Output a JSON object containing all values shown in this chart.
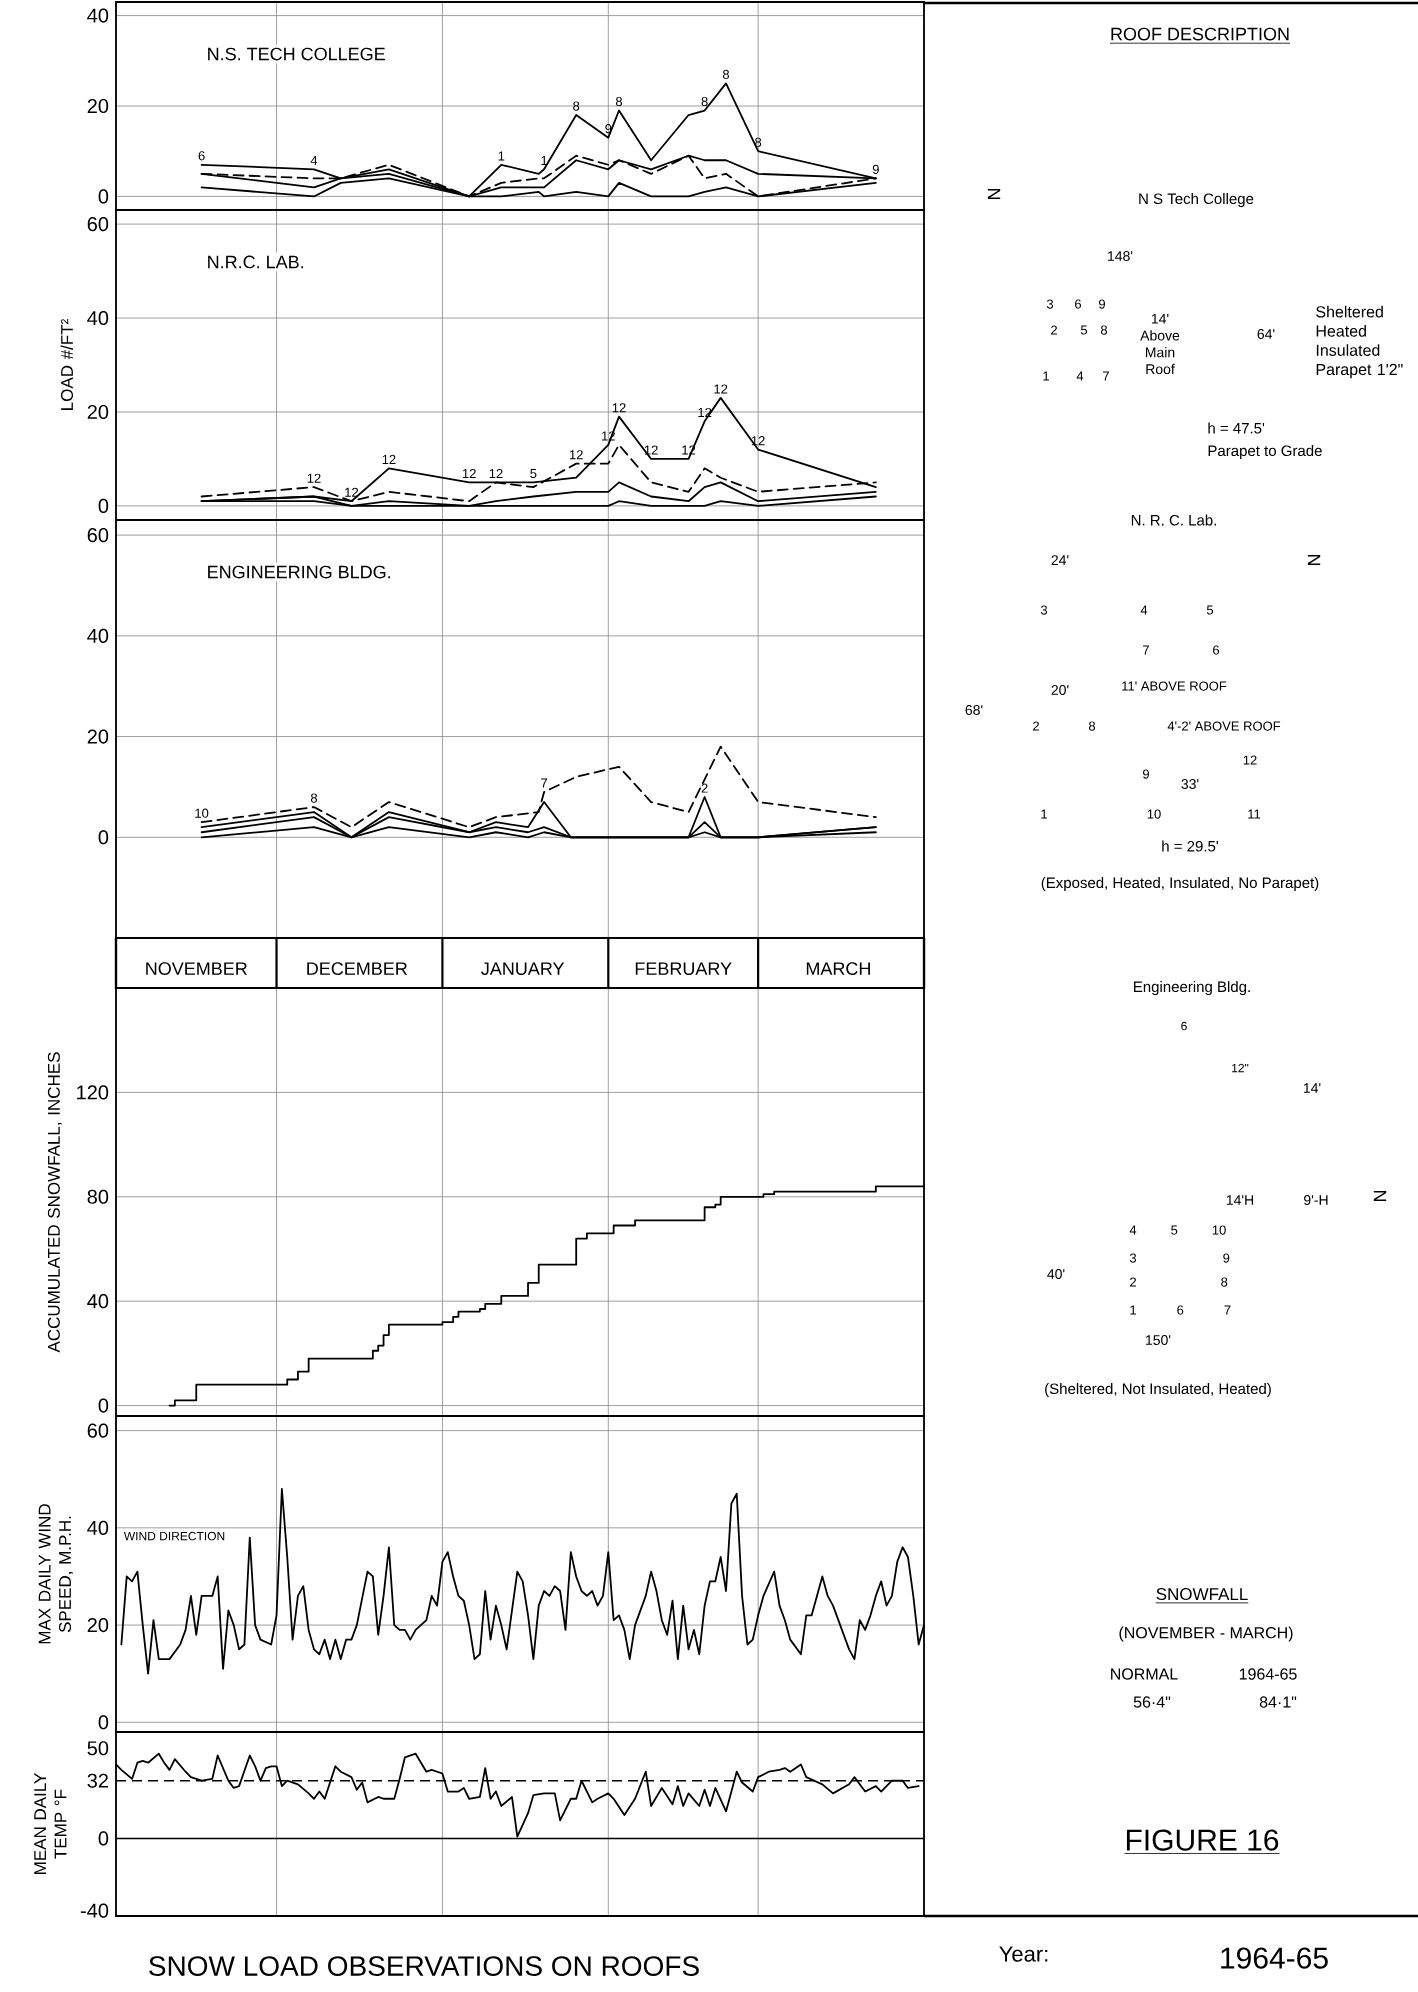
{
  "chart_data": [
    {
      "type": "line",
      "title": "N.S. TECH COLLEGE",
      "xlim": [
        "1964-11-01",
        "1965-04-01"
      ],
      "xticks": [
        {
          "value": "1964-11-01",
          "label": null
        },
        {
          "value": "1964-12-01",
          "label": null
        },
        {
          "value": "1965-01-01",
          "label": null
        },
        {
          "value": "1965-02-01",
          "label": null
        },
        {
          "value": "1965-03-01",
          "label": null
        },
        {
          "value": "1965-04-01",
          "label": null
        }
      ],
      "ylim": [
        -3,
        43
      ],
      "yticks": [
        0,
        20,
        40
      ],
      "grid": true,
      "tick_labels": "y",
      "series": [
        {
          "color": "#000000",
          "x": [
            "1964-11-17",
            "1964-12-08",
            "1964-12-13",
            "1964-12-22",
            "1965-01-06",
            "1965-01-12",
            "1965-01-19",
            "1965-01-20",
            "1965-01-26",
            "1965-02-01",
            "1965-02-03",
            "1965-02-09",
            "1965-02-16",
            "1965-02-19",
            "1965-02-23",
            "1965-03-01",
            "1965-03-23"
          ],
          "values": [
            7,
            6,
            4,
            6,
            0,
            7,
            5,
            6,
            18,
            13,
            19,
            8,
            18,
            19,
            25,
            10,
            4
          ]
        },
        {
          "color": "#000000",
          "line_style": "dashed",
          "x": [
            "1964-11-17",
            "1964-12-08",
            "1964-12-13",
            "1964-12-22",
            "1965-01-06",
            "1965-01-12",
            "1965-01-19",
            "1965-01-20",
            "1965-01-26",
            "1965-02-01",
            "1965-02-03",
            "1965-02-09",
            "1965-02-16",
            "1965-02-19",
            "1965-02-23",
            "1965-03-01",
            "1965-03-23"
          ],
          "values": [
            5,
            4,
            4,
            7,
            0,
            3,
            4,
            4,
            9,
            7,
            8,
            5,
            9,
            4,
            5,
            0,
            4
          ]
        },
        {
          "color": "#000000",
          "x": [
            "1964-11-17",
            "1964-12-08",
            "1964-12-13",
            "1964-12-22",
            "1965-01-06",
            "1965-01-12",
            "1965-01-19",
            "1965-01-20",
            "1965-01-26",
            "1965-02-01",
            "1965-02-03",
            "1965-02-09",
            "1965-02-16",
            "1965-02-19",
            "1965-02-23",
            "1965-03-01",
            "1965-03-23"
          ],
          "values": [
            5,
            2,
            4,
            5,
            0,
            2,
            2,
            2,
            8,
            6,
            8,
            6,
            9,
            8,
            8,
            5,
            4
          ]
        },
        {
          "color": "#000000",
          "x": [
            "1964-11-17",
            "1964-12-08",
            "1964-12-13",
            "1964-12-22",
            "1965-01-06",
            "1965-01-12",
            "1965-01-19",
            "1965-01-20",
            "1965-01-26",
            "1965-02-01",
            "1965-02-03",
            "1965-02-09",
            "1965-02-16",
            "1965-02-19",
            "1965-02-23",
            "1965-03-01",
            "1965-03-23"
          ],
          "values": [
            2,
            0,
            3,
            4,
            0,
            0,
            1,
            0,
            1,
            0,
            3,
            0,
            0,
            1,
            2,
            0,
            3
          ]
        }
      ],
      "annotations": [
        {
          "text": "6",
          "x": "1964-11-17",
          "y": 7
        },
        {
          "text": "4",
          "x": "1964-12-08",
          "y": 6
        },
        {
          "text": "1",
          "x": "1965-01-12",
          "y": 7
        },
        {
          "text": "1",
          "x": "1965-01-20",
          "y": 6
        },
        {
          "text": "8",
          "x": "1965-01-26",
          "y": 18
        },
        {
          "text": "9",
          "x": "1965-02-01",
          "y": 13
        },
        {
          "text": "8",
          "x": "1965-02-03",
          "y": 19
        },
        {
          "text": "8",
          "x": "1965-02-19",
          "y": 19
        },
        {
          "text": "8",
          "x": "1965-02-23",
          "y": 25
        },
        {
          "text": "8",
          "x": "1965-03-01",
          "y": 10
        },
        {
          "text": "9",
          "x": "1965-03-23",
          "y": 4
        }
      ]
    },
    {
      "type": "line",
      "title": "N.R.C. LAB.",
      "ylabel": "LOAD #/FT²",
      "xlim": [
        "1964-11-01",
        "1965-04-01"
      ],
      "xticks": [
        {
          "value": "1964-11-01",
          "label": null
        },
        {
          "value": "1964-12-01",
          "label": null
        },
        {
          "value": "1965-01-01",
          "label": null
        },
        {
          "value": "1965-02-01",
          "label": null
        },
        {
          "value": "1965-03-01",
          "label": null
        },
        {
          "value": "1965-04-01",
          "label": null
        }
      ],
      "ylim": [
        -3,
        63
      ],
      "yticks": [
        0,
        20,
        40,
        60
      ],
      "grid": true,
      "tick_labels": "y",
      "series": [
        {
          "color": "#000000",
          "x": [
            "1964-11-17",
            "1964-12-08",
            "1964-12-15",
            "1964-12-22",
            "1965-01-06",
            "1965-01-11",
            "1965-01-18",
            "1965-01-26",
            "1965-02-01",
            "1965-02-03",
            "1965-02-09",
            "1965-02-16",
            "1965-02-19",
            "1965-02-22",
            "1965-03-01",
            "1965-03-23"
          ],
          "values": [
            1,
            2,
            1,
            8,
            5,
            5,
            5,
            6,
            13,
            19,
            10,
            10,
            18,
            23,
            12,
            4
          ]
        },
        {
          "color": "#000000",
          "line_style": "dashed",
          "x": [
            "1964-11-17",
            "1964-12-08",
            "1964-12-15",
            "1964-12-22",
            "1965-01-06",
            "1965-01-11",
            "1965-01-18",
            "1965-01-26",
            "1965-02-01",
            "1965-02-03",
            "1965-02-09",
            "1965-02-16",
            "1965-02-19",
            "1965-02-22",
            "1965-03-01",
            "1965-03-23"
          ],
          "values": [
            2,
            4,
            1,
            3,
            1,
            5,
            4,
            9,
            9,
            13,
            5,
            3,
            8,
            6,
            3,
            5
          ]
        },
        {
          "color": "#000000",
          "x": [
            "1964-11-17",
            "1964-12-08",
            "1964-12-15",
            "1964-12-22",
            "1965-01-06",
            "1965-01-11",
            "1965-01-18",
            "1965-01-26",
            "1965-02-01",
            "1965-02-03",
            "1965-02-09",
            "1965-02-16",
            "1965-02-19",
            "1965-02-22",
            "1965-03-01",
            "1965-03-23"
          ],
          "values": [
            1,
            2,
            0,
            1,
            0,
            1,
            2,
            3,
            3,
            5,
            2,
            1,
            4,
            5,
            1,
            3
          ]
        },
        {
          "color": "#000000",
          "x": [
            "1964-11-17",
            "1964-12-08",
            "1964-12-15",
            "1964-12-22",
            "1965-01-06",
            "1965-01-11",
            "1965-01-18",
            "1965-01-26",
            "1965-02-01",
            "1965-02-03",
            "1965-02-09",
            "1965-02-16",
            "1965-02-19",
            "1965-02-22",
            "1965-03-01",
            "1965-03-23"
          ],
          "values": [
            1,
            1,
            0,
            0,
            0,
            0,
            0,
            0,
            0,
            1,
            0,
            0,
            0,
            1,
            0,
            2
          ]
        }
      ],
      "annotations": [
        {
          "text": "12",
          "x": "1964-12-08",
          "y": 4
        },
        {
          "text": "12",
          "x": "1964-12-15",
          "y": 1
        },
        {
          "text": "12",
          "x": "1964-12-22",
          "y": 8
        },
        {
          "text": "12",
          "x": "1965-01-06",
          "y": 5
        },
        {
          "text": "12",
          "x": "1965-01-11",
          "y": 5
        },
        {
          "text": "5",
          "x": "1965-01-18",
          "y": 5
        },
        {
          "text": "12",
          "x": "1965-01-26",
          "y": 9
        },
        {
          "text": "12",
          "x": "1965-02-01",
          "y": 13
        },
        {
          "text": "12",
          "x": "1965-02-03",
          "y": 19
        },
        {
          "text": "12",
          "x": "1965-02-09",
          "y": 10
        },
        {
          "text": "12",
          "x": "1965-02-16",
          "y": 10
        },
        {
          "text": "12",
          "x": "1965-02-19",
          "y": 18
        },
        {
          "text": "12",
          "x": "1965-02-22",
          "y": 23
        },
        {
          "text": "12",
          "x": "1965-03-01",
          "y": 12
        }
      ]
    },
    {
      "type": "line",
      "title": "ENGINEERING BLDG.",
      "xlim": [
        "1964-11-01",
        "1965-04-01"
      ],
      "xticks": [
        {
          "value": "1964-11-01",
          "label": null
        },
        {
          "value": "1964-12-01",
          "label": null
        },
        {
          "value": "1965-01-01",
          "label": null
        },
        {
          "value": "1965-02-01",
          "label": null
        },
        {
          "value": "1965-03-01",
          "label": null
        },
        {
          "value": "1965-04-01",
          "label": null
        }
      ],
      "ylim": [
        -20,
        63
      ],
      "yticks": [
        0,
        20,
        40,
        60
      ],
      "grid": true,
      "tick_labels": "y",
      "series": [
        {
          "color": "#000000",
          "line_style": "dashed",
          "x": [
            "1964-11-17",
            "1964-12-08",
            "1964-12-15",
            "1964-12-22",
            "1965-01-06",
            "1965-01-11",
            "1965-01-19",
            "1965-01-20",
            "1965-01-26",
            "1965-02-03",
            "1965-02-09",
            "1965-02-16",
            "1965-02-22",
            "1965-03-01",
            "1965-03-23"
          ],
          "values": [
            3,
            6,
            2,
            7,
            2,
            4,
            5,
            9,
            12,
            14,
            7,
            5,
            18,
            7,
            4
          ]
        },
        {
          "color": "#000000",
          "x": [
            "1964-11-17",
            "1964-12-08",
            "1964-12-15",
            "1964-12-22",
            "1965-01-06",
            "1965-01-11",
            "1965-01-17",
            "1965-01-20",
            "1965-01-25",
            "1965-02-16",
            "1965-02-19",
            "1965-02-22",
            "1965-03-01",
            "1965-03-23"
          ],
          "values": [
            2,
            5,
            0,
            5,
            1,
            3,
            2,
            7,
            0,
            0,
            8,
            0,
            0,
            2
          ]
        },
        {
          "color": "#000000",
          "x": [
            "1964-11-17",
            "1964-12-08",
            "1964-12-15",
            "1964-12-22",
            "1965-01-06",
            "1965-01-11",
            "1965-01-17",
            "1965-01-20",
            "1965-01-25",
            "1965-02-16",
            "1965-02-19",
            "1965-02-22",
            "1965-03-01",
            "1965-03-23"
          ],
          "values": [
            1,
            4,
            0,
            4,
            1,
            2,
            1,
            2,
            0,
            0,
            3,
            0,
            0,
            2
          ]
        },
        {
          "color": "#000000",
          "x": [
            "1964-11-17",
            "1964-12-08",
            "1964-12-15",
            "1964-12-22",
            "1965-01-06",
            "1965-01-11",
            "1965-01-17",
            "1965-01-20",
            "1965-01-25",
            "1965-02-16",
            "1965-02-19",
            "1965-02-22",
            "1965-03-01",
            "1965-03-23"
          ],
          "values": [
            0,
            2,
            0,
            2,
            0,
            1,
            0,
            1,
            0,
            0,
            1,
            0,
            0,
            1
          ]
        }
      ],
      "annotations": [
        {
          "text": "10",
          "x": "1964-11-17",
          "y": 3
        },
        {
          "text": "8",
          "x": "1964-12-08",
          "y": 6
        },
        {
          "text": "7",
          "x": "1965-01-20",
          "y": 9
        },
        {
          "text": "2",
          "x": "1965-02-19",
          "y": 8
        }
      ]
    },
    {
      "type": "step",
      "ylabel": "ACCUMULATED SNOWFALL, INCHES",
      "xlim": [
        "1964-11-01",
        "1965-04-01"
      ],
      "xticks": [
        {
          "value": "1964-11-01",
          "label": null
        },
        {
          "value": "1964-11-16",
          "label": "NOVEMBER"
        },
        {
          "value": "1964-12-01",
          "label": null
        },
        {
          "value": "1964-12-16",
          "label": "DECEMBER"
        },
        {
          "value": "1965-01-01",
          "label": null
        },
        {
          "value": "1965-01-16",
          "label": "JANUARY"
        },
        {
          "value": "1965-02-01",
          "label": null
        },
        {
          "value": "1965-02-15",
          "label": "FEBRUARY"
        },
        {
          "value": "1965-03-01",
          "label": null
        },
        {
          "value": "1965-03-16",
          "label": "MARCH"
        },
        {
          "value": "1965-04-01",
          "label": null
        }
      ],
      "ylim": [
        -4,
        160
      ],
      "yticks": [
        0,
        40,
        80,
        120
      ],
      "grid": true,
      "series": [
        {
          "color": "#000000",
          "x": [
            "1964-11-11",
            "1964-11-12",
            "1964-11-16",
            "1964-12-03",
            "1964-12-05",
            "1964-12-07",
            "1964-12-19",
            "1964-12-20",
            "1964-12-21",
            "1964-12-22",
            "1965-01-01",
            "1965-01-03",
            "1965-01-04",
            "1965-01-08",
            "1965-01-09",
            "1965-01-12",
            "1965-01-17",
            "1965-01-19",
            "1965-01-26",
            "1965-01-28",
            "1965-02-02",
            "1965-02-06",
            "1965-02-19",
            "1965-02-21",
            "1965-02-22",
            "1965-03-02",
            "1965-03-04",
            "1965-03-23",
            "1965-04-01"
          ],
          "values": [
            0,
            2,
            8,
            10,
            13,
            18,
            21,
            23,
            27,
            31,
            32,
            34,
            36,
            37,
            39,
            42,
            47,
            54,
            64,
            66,
            69,
            71,
            76,
            77,
            80,
            81,
            82,
            84,
            84
          ]
        }
      ]
    },
    {
      "type": "line",
      "ylabel": "MAX DAILY WIND SPEED, M.P.H.",
      "xlim": [
        "1964-11-01",
        "1965-04-01"
      ],
      "xticks": [
        {
          "value": "1964-11-01",
          "label": null
        },
        {
          "value": "1964-12-01",
          "label": null
        },
        {
          "value": "1965-01-01",
          "label": null
        },
        {
          "value": "1965-02-01",
          "label": null
        },
        {
          "value": "1965-03-01",
          "label": null
        },
        {
          "value": "1965-04-01",
          "label": null
        }
      ],
      "ylim": [
        -2,
        63
      ],
      "yticks": [
        0,
        20,
        40,
        60
      ],
      "grid": true,
      "tick_labels": "y",
      "annotations": [
        "WIND DIRECTION"
      ],
      "series": [
        {
          "color": "#000000",
          "x": [
            "1964-11-02",
            "1964-11-03",
            "1964-11-04",
            "1964-11-05",
            "1964-11-06",
            "1964-11-07",
            "1964-11-08",
            "1964-11-09",
            "1964-11-11",
            "1964-11-13",
            "1964-11-14",
            "1964-11-15",
            "1964-11-16",
            "1964-11-17",
            "1964-11-19",
            "1964-11-20",
            "1964-11-21",
            "1964-11-22",
            "1964-11-23",
            "1964-11-24",
            "1964-11-25",
            "1964-11-26",
            "1964-11-27",
            "1964-11-28",
            "1964-11-30",
            "1964-12-01",
            "1964-12-02",
            "1964-12-03",
            "1964-12-04",
            "1964-12-05",
            "1964-12-06",
            "1964-12-07",
            "1964-12-08",
            "1964-12-09",
            "1964-12-10",
            "1964-12-11",
            "1964-12-12",
            "1964-12-13",
            "1964-12-14",
            "1964-12-15",
            "1964-12-16",
            "1964-12-18",
            "1964-12-19",
            "1964-12-20",
            "1964-12-21",
            "1964-12-22",
            "1964-12-23",
            "1964-12-24",
            "1964-12-25",
            "1964-12-26",
            "1964-12-27",
            "1964-12-29",
            "1964-12-30",
            "1964-12-31",
            "1965-01-01",
            "1965-01-02",
            "1965-01-03",
            "1965-01-04",
            "1965-01-05",
            "1965-01-06",
            "1965-01-07",
            "1965-01-08",
            "1965-01-09",
            "1965-01-10",
            "1965-01-11",
            "1965-01-12",
            "1965-01-13",
            "1965-01-15",
            "1965-01-16",
            "1965-01-17",
            "1965-01-18",
            "1965-01-19",
            "1965-01-20",
            "1965-01-21",
            "1965-01-22",
            "1965-01-23",
            "1965-01-24",
            "1965-01-25",
            "1965-01-26",
            "1965-01-27",
            "1965-01-28",
            "1965-01-29",
            "1965-01-30",
            "1965-01-31",
            "1965-02-01",
            "1965-02-02",
            "1965-02-03",
            "1965-02-04",
            "1965-02-05",
            "1965-02-06",
            "1965-02-08",
            "1965-02-09",
            "1965-02-10",
            "1965-02-11",
            "1965-02-12",
            "1965-02-13",
            "1965-02-14",
            "1965-02-15",
            "1965-02-16",
            "1965-02-17",
            "1965-02-18",
            "1965-02-19",
            "1965-02-20",
            "1965-02-21",
            "1965-02-22",
            "1965-02-23",
            "1965-02-24",
            "1965-02-25",
            "1965-02-26",
            "1965-02-27",
            "1965-02-28",
            "1965-03-01",
            "1965-03-02",
            "1965-03-04",
            "1965-03-05",
            "1965-03-06",
            "1965-03-07",
            "1965-03-09",
            "1965-03-10",
            "1965-03-11",
            "1965-03-12",
            "1965-03-13",
            "1965-03-14",
            "1965-03-15",
            "1965-03-16",
            "1965-03-17",
            "1965-03-18",
            "1965-03-19",
            "1965-03-20",
            "1965-03-21",
            "1965-03-22",
            "1965-03-23",
            "1965-03-24",
            "1965-03-25",
            "1965-03-26",
            "1965-03-27",
            "1965-03-28",
            "1965-03-29",
            "1965-03-30",
            "1965-03-31",
            "1965-04-01"
          ],
          "values": [
            16,
            30,
            29,
            31,
            20,
            10,
            21,
            13,
            13,
            16,
            19,
            26,
            18,
            26,
            26,
            30,
            11,
            23,
            20,
            15,
            16,
            38,
            20,
            17,
            16,
            22,
            48,
            34,
            17,
            26,
            28,
            19,
            15,
            14,
            17,
            13,
            17,
            13,
            17,
            17,
            20,
            31,
            30,
            18,
            26,
            36,
            20,
            19,
            19,
            17,
            19,
            21,
            26,
            24,
            33,
            35,
            30,
            26,
            25,
            20,
            13,
            14,
            27,
            17,
            24,
            20,
            15,
            31,
            29,
            22,
            13,
            24,
            27,
            26,
            28,
            27,
            19,
            35,
            30,
            27,
            26,
            27,
            24,
            26,
            35,
            21,
            22,
            19,
            13,
            20,
            26,
            31,
            27,
            21,
            18,
            25,
            13,
            24,
            15,
            19,
            14,
            24,
            29,
            29,
            34,
            27,
            45,
            47,
            26,
            16,
            17,
            22,
            26,
            31,
            24,
            21,
            17,
            14,
            22,
            22,
            26,
            30,
            26,
            24,
            21,
            18,
            15,
            13,
            21,
            19,
            22,
            26,
            29,
            24,
            26,
            33,
            36,
            34,
            26,
            16,
            20
          ]
        }
      ]
    },
    {
      "type": "line",
      "ylabel": "MEAN DAILY TEMP °F",
      "xlim": [
        "1964-11-01",
        "1965-04-01"
      ],
      "xticks": [
        {
          "value": "1964-11-01",
          "label": null
        },
        {
          "value": "1964-12-01",
          "label": null
        },
        {
          "value": "1965-01-01",
          "label": null
        },
        {
          "value": "1965-02-01",
          "label": null
        },
        {
          "value": "1965-03-01",
          "label": null
        },
        {
          "value": "1965-04-01",
          "label": null
        }
      ],
      "ylim": [
        -43,
        59
      ],
      "yticks": [
        -40,
        0,
        32,
        50
      ],
      "grid": "x",
      "tick_labels": "y",
      "ref_lines": [
        {
          "axis": "y",
          "value": 0
        },
        {
          "axis": "y",
          "value": 32,
          "line_style": "dashed"
        }
      ],
      "series": [
        {
          "color": "#000000",
          "x": [
            "1964-11-01",
            "1964-11-02",
            "1964-11-04",
            "1964-11-05",
            "1964-11-06",
            "1964-11-07",
            "1964-11-09",
            "1964-11-10",
            "1964-11-11",
            "1964-11-12",
            "1964-11-14",
            "1964-11-15",
            "1964-11-16",
            "1964-11-17",
            "1964-11-19",
            "1964-11-20",
            "1964-11-22",
            "1964-11-23",
            "1964-11-24",
            "1964-11-26",
            "1964-11-27",
            "1964-11-28",
            "1964-11-29",
            "1964-11-30",
            "1964-12-01",
            "1964-12-02",
            "1964-12-03",
            "1964-12-05",
            "1964-12-07",
            "1964-12-08",
            "1964-12-09",
            "1964-12-10",
            "1964-12-12",
            "1964-12-13",
            "1964-12-15",
            "1964-12-16",
            "1964-12-17",
            "1964-12-18",
            "1964-12-20",
            "1964-12-21",
            "1964-12-23",
            "1964-12-24",
            "1964-12-25",
            "1964-12-27",
            "1964-12-28",
            "1964-12-29",
            "1964-12-30",
            "1965-01-01",
            "1965-01-02",
            "1965-01-04",
            "1965-01-05",
            "1965-01-06",
            "1965-01-08",
            "1965-01-09",
            "1965-01-10",
            "1965-01-11",
            "1965-01-12",
            "1965-01-14",
            "1965-01-15",
            "1965-01-17",
            "1965-01-18",
            "1965-01-20",
            "1965-01-22",
            "1965-01-23",
            "1965-01-25",
            "1965-01-26",
            "1965-01-27",
            "1965-01-29",
            "1965-01-30",
            "1965-02-01",
            "1965-02-02",
            "1965-02-04",
            "1965-02-06",
            "1965-02-08",
            "1965-02-09",
            "1965-02-11",
            "1965-02-13",
            "1965-02-14",
            "1965-02-15",
            "1965-02-16",
            "1965-02-18",
            "1965-02-19",
            "1965-02-20",
            "1965-02-21",
            "1965-02-23",
            "1965-02-25",
            "1965-02-26",
            "1965-02-28",
            "1965-03-01",
            "1965-03-03",
            "1965-03-05",
            "1965-03-06",
            "1965-03-07",
            "1965-03-09",
            "1965-03-10",
            "1965-03-13",
            "1965-03-15",
            "1965-03-18",
            "1965-03-19",
            "1965-03-21",
            "1965-03-23",
            "1965-03-24",
            "1965-03-26",
            "1965-03-28",
            "1965-03-29",
            "1965-03-31"
          ],
          "values": [
            41,
            38,
            33,
            42,
            43,
            42,
            47,
            42,
            38,
            44,
            37,
            34,
            33,
            32,
            33,
            46,
            32,
            28,
            29,
            46,
            40,
            32,
            39,
            40,
            40,
            29,
            32,
            30,
            25,
            22,
            26,
            22,
            40,
            37,
            34,
            27,
            31,
            20,
            23,
            22,
            22,
            33,
            45,
            47,
            42,
            37,
            38,
            36,
            26,
            26,
            28,
            22,
            23,
            39,
            22,
            26,
            18,
            23,
            1,
            14,
            24,
            25,
            25,
            10,
            22,
            22,
            32,
            20,
            22,
            25,
            22,
            13,
            22,
            37,
            18,
            28,
            19,
            29,
            18,
            25,
            18,
            27,
            18,
            28,
            15,
            37,
            31,
            26,
            34,
            37,
            38,
            39,
            37,
            41,
            34,
            30,
            25,
            30,
            34,
            26,
            29,
            26,
            32,
            32,
            28,
            29
          ]
        }
      ]
    },
    {
      "type": "other",
      "title": "ROOF DESCRIPTION",
      "annotations": [
        "N",
        "N S Tech College",
        "148'",
        "3",
        "6",
        "9",
        "2",
        "5",
        "8",
        "1",
        "4",
        "7",
        "14' Above Main Roof",
        "64'",
        "Sheltered Heated Insulated Parapet 1'2\"",
        "h = 47.5'",
        "Parapet to Grade",
        "N. R. C. Lab.",
        "N",
        "24'",
        "68'",
        "20'",
        "3",
        "4",
        "5",
        "7",
        "6",
        "2",
        "8",
        "9",
        "12",
        "1",
        "10",
        "11",
        "11' ABOVE ROOF",
        "4'-2' ABOVE ROOF",
        "33'",
        "h = 29.5'",
        "(Exposed, Heated, Insulated, No Parapet)",
        "Engineering Bldg.",
        "6",
        "12\"",
        "14'",
        "14'H",
        "9'-H",
        "N",
        "40'",
        "4 5 10",
        "3 9",
        "2 8",
        "1 6 7",
        "150'",
        "(Sheltered, Not Insulated, Heated)",
        "SNOWFALL",
        "(NOVEMBER - MARCH)",
        "NORMAL",
        "1964-65",
        "56·4\"",
        "84·1\"",
        "FIGURE 16",
        "SNOW LOAD OBSERVATIONS ON ROOFS",
        "Year:",
        "1964-65"
      ]
    }
  ]
}
